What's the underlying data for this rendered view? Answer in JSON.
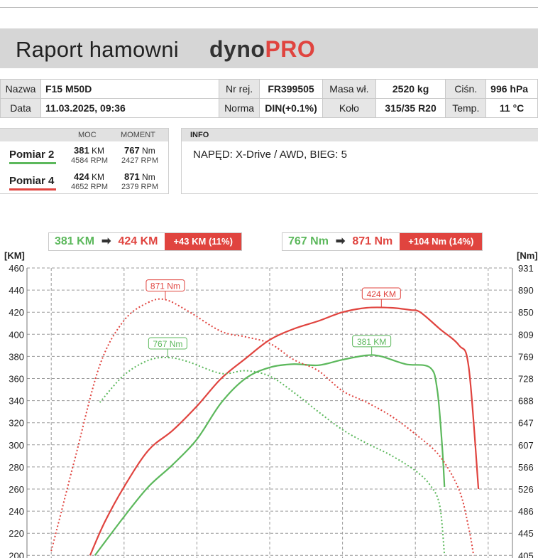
{
  "header": {
    "title": "Raport hamowni",
    "logo_a": "dyno",
    "logo_b": "PRO"
  },
  "info_table": {
    "row1": [
      {
        "label": "Nazwa",
        "value": "F15 M50D"
      },
      {
        "label": "Nr rej.",
        "value": "FR399505"
      },
      {
        "label": "Masa wł.",
        "value": "2520 kg"
      },
      {
        "label": "Ciśn.",
        "value": "996 hPa"
      }
    ],
    "row2": [
      {
        "label": "Data",
        "value": "11.03.2025, 09:36"
      },
      {
        "label": "Norma",
        "value": "DIN(+0.1%)"
      },
      {
        "label": "Koło",
        "value": "315/35 R20"
      },
      {
        "label": "Temp.",
        "value": "11 °C"
      }
    ]
  },
  "measurements": {
    "col_moc": "MOC",
    "col_moment": "MOMENT",
    "rows": [
      {
        "name": "Pomiar 2",
        "color": "#5cb85c",
        "power": "381",
        "power_unit": "KM",
        "power_rpm": "4584",
        "torque": "767",
        "torque_unit": "Nm",
        "torque_rpm": "2427",
        "rpm_unit": "RPM"
      },
      {
        "name": "Pomiar 4",
        "color": "#e0443f",
        "power": "424",
        "power_unit": "KM",
        "power_rpm": "4652",
        "torque": "871",
        "torque_unit": "Nm",
        "torque_rpm": "2379",
        "rpm_unit": "RPM"
      }
    ]
  },
  "info": {
    "heading": "INFO",
    "text": "NAPĘD: X-Drive / AWD,  BIEG: 5"
  },
  "comparison": {
    "power": {
      "from": "381 KM",
      "to": "424 KM",
      "delta": "+43 KM  (11%)"
    },
    "torque": {
      "from": "767 Nm",
      "to": "871 Nm",
      "delta": "+104 Nm  (14%)"
    }
  },
  "colors": {
    "green": "#5cb85c",
    "red": "#e0443f",
    "grid": "#9a9a9a"
  },
  "chart_data": {
    "type": "line",
    "ylabel_left": "[KM]",
    "ylabel_right": "[Nm]",
    "ylim_left": [
      200,
      460
    ],
    "left_ticks": [
      200,
      220,
      240,
      260,
      280,
      300,
      320,
      340,
      360,
      380,
      400,
      420,
      440,
      460
    ],
    "right_ticks": [
      "405",
      "445",
      "486",
      "526",
      "566",
      "607",
      "647",
      "688",
      "728",
      "769",
      "809",
      "850",
      "890",
      "931"
    ],
    "ylim_right": [
      405,
      931
    ],
    "x_range": [
      0,
      10
    ],
    "x_gridlines": [
      0.5,
      2,
      3.5,
      5,
      6.5,
      8,
      9.5
    ],
    "grid": true,
    "series": [
      {
        "name": "Pomiar 4",
        "kind": "power",
        "axis": "left",
        "color": "#e0443f",
        "dash": false,
        "points": [
          [
            1.3,
            200
          ],
          [
            1.6,
            230
          ],
          [
            2,
            262
          ],
          [
            2.5,
            295
          ],
          [
            3,
            313
          ],
          [
            3.5,
            335
          ],
          [
            4,
            360
          ],
          [
            4.5,
            378
          ],
          [
            5,
            395
          ],
          [
            5.5,
            405
          ],
          [
            6,
            412
          ],
          [
            6.5,
            420
          ],
          [
            7,
            424
          ],
          [
            7.5,
            424
          ],
          [
            7.9,
            422
          ],
          [
            8.1,
            420
          ],
          [
            8.5,
            405
          ],
          [
            8.9,
            390
          ],
          [
            9.1,
            370
          ],
          [
            9.3,
            260
          ]
        ]
      },
      {
        "name": "Pomiar 2",
        "kind": "power",
        "axis": "left",
        "color": "#5cb85c",
        "dash": false,
        "points": [
          [
            1.4,
            200
          ],
          [
            2,
            235
          ],
          [
            2.5,
            262
          ],
          [
            3,
            282
          ],
          [
            3.5,
            305
          ],
          [
            4,
            338
          ],
          [
            4.5,
            360
          ],
          [
            5,
            370
          ],
          [
            5.5,
            373
          ],
          [
            6,
            372
          ],
          [
            6.5,
            377
          ],
          [
            7,
            381
          ],
          [
            7.3,
            380
          ],
          [
            7.8,
            373
          ],
          [
            8.3,
            370
          ],
          [
            8.45,
            350
          ],
          [
            8.55,
            300
          ],
          [
            8.6,
            262
          ]
        ]
      },
      {
        "name": "Pomiar 4",
        "kind": "torque",
        "axis": "right",
        "color": "#e0443f",
        "dash": true,
        "points": [
          [
            0.5,
            413
          ],
          [
            0.7,
            482
          ],
          [
            1,
            586
          ],
          [
            1.5,
            753
          ],
          [
            2,
            835
          ],
          [
            2.5,
            868
          ],
          [
            2.85,
            873
          ],
          [
            3.3,
            853
          ],
          [
            4,
            815
          ],
          [
            4.5,
            805
          ],
          [
            5,
            793
          ],
          [
            5.5,
            763
          ],
          [
            6,
            743
          ],
          [
            6.5,
            706
          ],
          [
            7,
            685
          ],
          [
            7.5,
            660
          ],
          [
            8,
            627
          ],
          [
            8.5,
            587
          ],
          [
            8.9,
            525
          ],
          [
            9.1,
            455
          ],
          [
            9.2,
            405
          ]
        ]
      },
      {
        "name": "Pomiar 2",
        "kind": "torque",
        "axis": "right",
        "color": "#5cb85c",
        "dash": true,
        "points": [
          [
            1.5,
            685
          ],
          [
            2,
            735
          ],
          [
            2.5,
            762
          ],
          [
            2.9,
            767
          ],
          [
            3.3,
            760
          ],
          [
            4,
            738
          ],
          [
            4.5,
            743
          ],
          [
            5,
            733
          ],
          [
            5.5,
            703
          ],
          [
            6,
            668
          ],
          [
            6.5,
            635
          ],
          [
            7,
            610
          ],
          [
            7.5,
            588
          ],
          [
            8,
            560
          ],
          [
            8.3,
            534
          ],
          [
            8.5,
            497
          ],
          [
            8.6,
            405
          ]
        ]
      }
    ],
    "annotations": [
      {
        "text": "871 Nm",
        "color": "#e0443f",
        "axis": "right",
        "x": 2.85,
        "y": 873
      },
      {
        "text": "767 Nm",
        "color": "#5cb85c",
        "axis": "right",
        "x": 2.9,
        "y": 767
      },
      {
        "text": "424 KM",
        "color": "#e0443f",
        "axis": "left",
        "x": 7.3,
        "y": 424
      },
      {
        "text": "381 KM",
        "color": "#5cb85c",
        "axis": "left",
        "x": 7.1,
        "y": 381
      }
    ]
  }
}
